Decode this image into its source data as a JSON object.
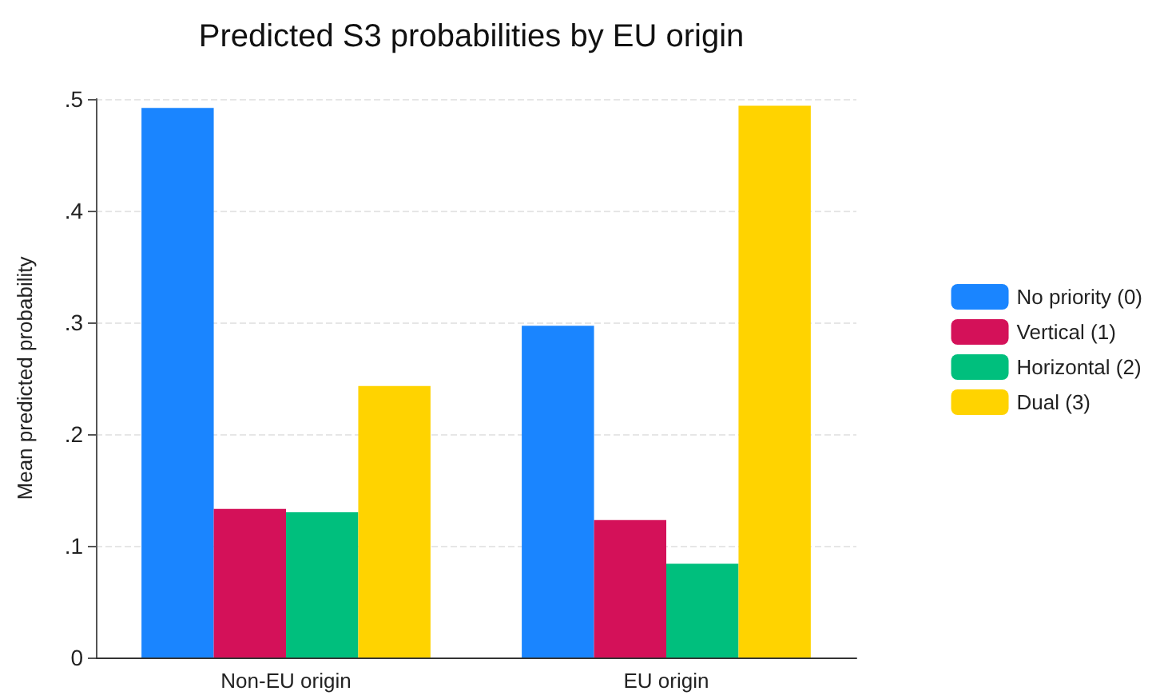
{
  "chart_data": {
    "type": "bar",
    "title": "Predicted S3 probabilities by EU origin",
    "ylabel": "Mean predicted probability",
    "categories": [
      "Non-EU origin",
      "EU origin"
    ],
    "series": [
      {
        "name": "No priority (0)",
        "color": "#1a85ff",
        "values": [
          0.492,
          0.297
        ]
      },
      {
        "name": "Vertical (1)",
        "color": "#d41159",
        "values": [
          0.133,
          0.123
        ]
      },
      {
        "name": "Horizontal (2)",
        "color": "#00bf7d",
        "values": [
          0.13,
          0.084
        ]
      },
      {
        "name": "Dual (3)",
        "color": "#ffd300",
        "values": [
          0.243,
          0.494
        ]
      }
    ],
    "ylim": [
      0,
      0.5
    ],
    "yticks": [
      {
        "value": 0,
        "label": "0"
      },
      {
        "value": 0.1,
        "label": ".1"
      },
      {
        "value": 0.2,
        "label": ".2"
      },
      {
        "value": 0.3,
        "label": ".3"
      },
      {
        "value": 0.4,
        "label": ".4"
      },
      {
        "value": 0.5,
        "label": ".5"
      }
    ],
    "grid": "y",
    "legend": "right"
  }
}
